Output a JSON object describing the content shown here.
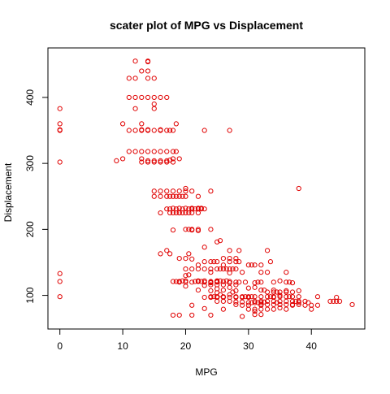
{
  "chart_data": {
    "type": "scatter",
    "title": "scater plot of MPG vs Displacement",
    "xlabel": "MPG",
    "ylabel": "Displacement",
    "xlim": [
      -1.9,
      48.5
    ],
    "ylim": [
      49,
      475
    ],
    "x_ticks": [
      0,
      10,
      20,
      30,
      40
    ],
    "y_ticks": [
      100,
      200,
      300,
      400
    ],
    "grid": false,
    "legend": "none",
    "marker": "open-circle",
    "color": "#e00000",
    "points": [
      [
        0,
        383
      ],
      [
        0,
        360
      ],
      [
        0,
        351
      ],
      [
        0,
        350
      ],
      [
        0,
        302
      ],
      [
        0,
        133
      ],
      [
        0,
        121
      ],
      [
        0,
        98
      ],
      [
        9,
        304
      ],
      [
        10,
        360
      ],
      [
        10,
        307
      ],
      [
        11,
        429
      ],
      [
        11,
        400
      ],
      [
        11,
        350
      ],
      [
        11,
        318
      ],
      [
        12,
        455
      ],
      [
        12,
        429
      ],
      [
        12,
        400
      ],
      [
        12,
        383
      ],
      [
        12,
        350
      ],
      [
        12,
        318
      ],
      [
        13,
        440
      ],
      [
        13,
        400
      ],
      [
        13,
        360
      ],
      [
        13,
        351
      ],
      [
        13,
        350
      ],
      [
        13,
        318
      ],
      [
        13,
        307
      ],
      [
        13,
        302
      ],
      [
        14,
        455
      ],
      [
        14,
        454
      ],
      [
        14,
        440
      ],
      [
        14,
        429
      ],
      [
        14,
        400
      ],
      [
        14,
        351
      ],
      [
        14,
        350
      ],
      [
        14,
        318
      ],
      [
        14,
        304
      ],
      [
        14,
        302
      ],
      [
        15,
        429
      ],
      [
        15,
        400
      ],
      [
        15,
        390
      ],
      [
        15,
        383
      ],
      [
        15,
        350
      ],
      [
        15,
        318
      ],
      [
        15,
        304
      ],
      [
        15,
        302
      ],
      [
        15,
        258
      ],
      [
        15,
        250
      ],
      [
        16,
        400
      ],
      [
        16,
        351
      ],
      [
        16,
        350
      ],
      [
        16,
        318
      ],
      [
        16,
        304
      ],
      [
        16,
        302
      ],
      [
        16,
        258
      ],
      [
        16,
        250
      ],
      [
        16,
        225
      ],
      [
        16,
        163
      ],
      [
        17,
        400
      ],
      [
        17,
        350
      ],
      [
        17,
        318
      ],
      [
        17,
        304
      ],
      [
        17,
        302
      ],
      [
        17,
        258
      ],
      [
        17,
        250
      ],
      [
        17,
        231
      ],
      [
        17,
        168
      ],
      [
        17.5,
        350
      ],
      [
        17.5,
        305
      ],
      [
        17.5,
        250
      ],
      [
        17.5,
        231
      ],
      [
        17.5,
        225
      ],
      [
        17.5,
        163
      ],
      [
        18,
        350
      ],
      [
        18,
        318
      ],
      [
        18,
        307
      ],
      [
        18,
        302
      ],
      [
        18,
        258
      ],
      [
        18,
        250
      ],
      [
        18,
        232
      ],
      [
        18,
        225
      ],
      [
        18,
        199
      ],
      [
        18,
        121
      ],
      [
        18,
        70
      ],
      [
        18.5,
        360
      ],
      [
        18.5,
        318
      ],
      [
        18.5,
        250
      ],
      [
        18.5,
        231
      ],
      [
        18.5,
        225
      ],
      [
        18.5,
        121
      ],
      [
        19,
        307
      ],
      [
        19,
        258
      ],
      [
        19,
        250
      ],
      [
        19,
        232
      ],
      [
        19,
        225
      ],
      [
        19,
        225
      ],
      [
        19,
        156
      ],
      [
        19,
        121
      ],
      [
        19,
        120
      ],
      [
        19,
        70
      ],
      [
        19.5,
        250
      ],
      [
        19.5,
        231
      ],
      [
        19.5,
        225
      ],
      [
        19.5,
        122
      ],
      [
        20,
        262
      ],
      [
        20,
        258
      ],
      [
        20,
        250
      ],
      [
        20,
        232
      ],
      [
        20,
        225
      ],
      [
        20,
        200
      ],
      [
        20,
        156
      ],
      [
        20,
        140
      ],
      [
        20,
        130
      ],
      [
        20,
        122
      ],
      [
        20,
        120
      ],
      [
        20,
        114
      ],
      [
        20.5,
        231
      ],
      [
        20.5,
        225
      ],
      [
        20.5,
        200
      ],
      [
        20.5,
        163
      ],
      [
        20.5,
        131
      ],
      [
        21,
        258
      ],
      [
        21,
        232
      ],
      [
        21,
        231
      ],
      [
        21,
        225
      ],
      [
        21,
        200
      ],
      [
        21,
        199
      ],
      [
        21,
        155
      ],
      [
        21,
        140
      ],
      [
        21,
        120
      ],
      [
        21,
        85
      ],
      [
        21,
        70
      ],
      [
        21.5,
        231
      ],
      [
        21.5,
        121
      ],
      [
        22,
        250
      ],
      [
        22,
        232
      ],
      [
        22,
        231
      ],
      [
        22,
        225
      ],
      [
        22,
        200
      ],
      [
        22,
        198
      ],
      [
        22,
        146
      ],
      [
        22,
        140
      ],
      [
        22,
        122
      ],
      [
        22,
        121
      ],
      [
        22,
        108
      ],
      [
        22.5,
        232
      ],
      [
        22.5,
        231
      ],
      [
        22.5,
        121
      ],
      [
        23,
        350
      ],
      [
        23,
        231
      ],
      [
        23,
        173
      ],
      [
        23,
        151
      ],
      [
        23,
        140
      ],
      [
        23,
        122
      ],
      [
        23,
        120
      ],
      [
        23,
        115
      ],
      [
        23,
        97
      ],
      [
        23,
        80
      ],
      [
        24,
        258
      ],
      [
        24,
        200
      ],
      [
        24,
        151
      ],
      [
        24,
        140
      ],
      [
        24,
        135
      ],
      [
        24,
        121
      ],
      [
        24,
        120
      ],
      [
        24,
        119
      ],
      [
        24,
        116
      ],
      [
        24,
        107
      ],
      [
        24,
        98
      ],
      [
        24,
        97
      ],
      [
        24,
        70
      ],
      [
        24.5,
        151
      ],
      [
        24.5,
        98
      ],
      [
        25,
        181
      ],
      [
        25,
        151
      ],
      [
        25,
        140
      ],
      [
        25,
        122
      ],
      [
        25,
        121
      ],
      [
        25,
        120
      ],
      [
        25,
        116
      ],
      [
        25,
        110
      ],
      [
        25,
        104
      ],
      [
        25,
        98
      ],
      [
        25,
        97
      ],
      [
        25,
        91
      ],
      [
        25.5,
        183
      ],
      [
        25.5,
        140
      ],
      [
        25.5,
        122
      ],
      [
        25.5,
        101
      ],
      [
        26,
        156
      ],
      [
        26,
        146
      ],
      [
        26,
        140
      ],
      [
        26,
        121
      ],
      [
        26,
        116
      ],
      [
        26,
        108
      ],
      [
        26,
        98
      ],
      [
        26,
        97
      ],
      [
        26,
        91
      ],
      [
        26,
        79
      ],
      [
        26.5,
        140
      ],
      [
        26.5,
        122
      ],
      [
        27,
        350
      ],
      [
        27,
        168
      ],
      [
        27,
        156
      ],
      [
        27,
        151
      ],
      [
        27,
        140
      ],
      [
        27,
        134
      ],
      [
        27,
        121
      ],
      [
        27,
        119
      ],
      [
        27,
        112
      ],
      [
        27,
        101
      ],
      [
        27,
        97
      ],
      [
        27,
        91
      ],
      [
        27.5,
        140
      ],
      [
        27.5,
        105
      ],
      [
        28,
        156
      ],
      [
        28,
        151
      ],
      [
        28,
        140
      ],
      [
        28,
        120
      ],
      [
        28,
        116
      ],
      [
        28,
        107
      ],
      [
        28,
        98
      ],
      [
        28,
        97
      ],
      [
        28,
        90
      ],
      [
        28,
        86
      ],
      [
        28.5,
        168
      ],
      [
        28.5,
        151
      ],
      [
        28.5,
        120
      ],
      [
        29,
        135
      ],
      [
        29,
        98
      ],
      [
        29,
        97
      ],
      [
        29,
        90
      ],
      [
        29,
        85
      ],
      [
        29,
        68
      ],
      [
        29.5,
        120
      ],
      [
        29.5,
        98
      ],
      [
        30,
        146
      ],
      [
        30,
        111
      ],
      [
        30,
        98
      ],
      [
        30,
        97
      ],
      [
        30,
        89
      ],
      [
        30,
        85
      ],
      [
        30,
        79
      ],
      [
        30.5,
        146
      ],
      [
        30.5,
        98
      ],
      [
        30.5,
        89
      ],
      [
        31,
        146
      ],
      [
        31,
        119
      ],
      [
        31,
        112
      ],
      [
        31,
        98
      ],
      [
        31,
        91
      ],
      [
        31,
        89
      ],
      [
        31,
        79
      ],
      [
        31,
        76
      ],
      [
        31,
        71
      ],
      [
        31.5,
        120
      ],
      [
        31.5,
        89
      ],
      [
        32,
        146
      ],
      [
        32,
        135
      ],
      [
        32,
        120
      ],
      [
        32,
        108
      ],
      [
        32,
        98
      ],
      [
        32,
        91
      ],
      [
        32,
        89
      ],
      [
        32,
        86
      ],
      [
        32,
        85
      ],
      [
        32,
        79
      ],
      [
        32,
        71
      ],
      [
        32.5,
        108
      ],
      [
        32.5,
        90
      ],
      [
        33,
        168
      ],
      [
        33,
        135
      ],
      [
        33,
        105
      ],
      [
        33,
        98
      ],
      [
        33,
        91
      ],
      [
        33,
        86
      ],
      [
        33,
        79
      ],
      [
        33.5,
        151
      ],
      [
        33.5,
        98
      ],
      [
        34,
        120
      ],
      [
        34,
        108
      ],
      [
        34,
        105
      ],
      [
        34,
        98
      ],
      [
        34,
        97
      ],
      [
        34,
        91
      ],
      [
        34,
        86
      ],
      [
        34,
        79
      ],
      [
        34.5,
        105
      ],
      [
        34.5,
        89
      ],
      [
        35,
        122
      ],
      [
        35,
        105
      ],
      [
        35,
        100
      ],
      [
        35,
        98
      ],
      [
        35,
        91
      ],
      [
        35,
        86
      ],
      [
        35,
        81
      ],
      [
        36,
        135
      ],
      [
        36,
        120
      ],
      [
        36,
        107
      ],
      [
        36,
        105
      ],
      [
        36,
        98
      ],
      [
        36,
        91
      ],
      [
        36,
        86
      ],
      [
        36,
        79
      ],
      [
        36.5,
        120
      ],
      [
        36.5,
        98
      ],
      [
        37,
        119
      ],
      [
        37,
        105
      ],
      [
        37,
        98
      ],
      [
        37,
        91
      ],
      [
        37,
        86
      ],
      [
        37,
        85
      ],
      [
        37.5,
        91
      ],
      [
        38,
        262
      ],
      [
        38,
        107
      ],
      [
        38,
        98
      ],
      [
        38,
        91
      ],
      [
        38,
        89
      ],
      [
        38,
        86
      ],
      [
        39,
        91
      ],
      [
        39,
        85
      ],
      [
        39.5,
        89
      ],
      [
        40,
        85
      ],
      [
        40,
        79
      ],
      [
        41,
        98
      ],
      [
        41,
        85
      ],
      [
        43,
        91
      ],
      [
        43.5,
        91
      ],
      [
        44,
        97
      ],
      [
        44,
        91
      ],
      [
        44.5,
        91
      ],
      [
        46.5,
        86
      ]
    ]
  }
}
